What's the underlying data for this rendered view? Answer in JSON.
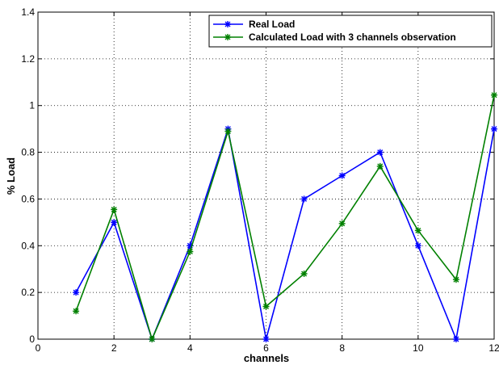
{
  "chart_data": {
    "type": "line",
    "xlabel": "channels",
    "ylabel": "% Load",
    "xlim": [
      0,
      12
    ],
    "ylim": [
      0,
      1.4
    ],
    "xticks": [
      "0",
      "2",
      "4",
      "6",
      "8",
      "10",
      "12"
    ],
    "yticks": [
      "0",
      "0.2",
      "0.4",
      "0.6",
      "0.8",
      "1",
      "1.2",
      "1.4"
    ],
    "grid": true,
    "legend_position": "top-right",
    "series": [
      {
        "name": "Real Load",
        "color": "#0000ff",
        "marker": "star",
        "x": [
          1,
          2,
          3,
          4,
          5,
          6,
          7,
          8,
          9,
          10,
          11,
          12
        ],
        "values": [
          0.2,
          0.5,
          0.0,
          0.4,
          0.9,
          0.0,
          0.6,
          0.7,
          0.8,
          0.4,
          0.0,
          0.9
        ]
      },
      {
        "name": "Calculated Load with 3 channels observation",
        "color": "#008000",
        "marker": "star",
        "x": [
          1,
          2,
          3,
          4,
          5,
          6,
          7,
          8,
          9,
          10,
          11,
          12
        ],
        "values": [
          0.12,
          0.555,
          0.0,
          0.375,
          0.89,
          0.14,
          0.28,
          0.495,
          0.74,
          0.465,
          0.255,
          1.045
        ]
      }
    ]
  }
}
